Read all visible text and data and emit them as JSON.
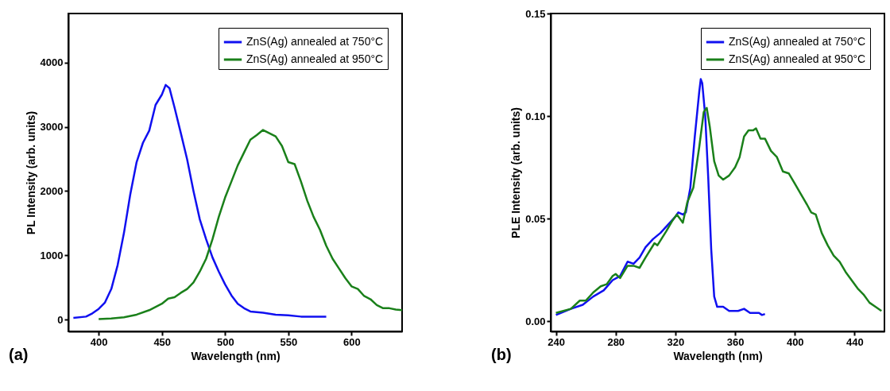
{
  "chart_data": [
    {
      "type": "line",
      "xlabel": "Wavelength (nm)",
      "ylabel": "PL Intensity (arb. units)",
      "annotations": [
        "(a)"
      ],
      "xlim": [
        376,
        640
      ],
      "xticks": [
        400,
        450,
        500,
        550,
        600
      ],
      "ylim": [
        -180,
        4760
      ],
      "yticks": [
        0,
        1000,
        2000,
        3000,
        4000
      ],
      "grid": false,
      "legend": "top right",
      "line_style": "solid",
      "series": [
        {
          "name": "ZnS(Ag) annealed at 750°C",
          "color": "#1010f0",
          "x": [
            380,
            390,
            395,
            400,
            405,
            410,
            415,
            420,
            425,
            430,
            435,
            440,
            445,
            450,
            453,
            456,
            460,
            465,
            470,
            475,
            480,
            485,
            490,
            495,
            500,
            505,
            510,
            515,
            520,
            530,
            540,
            550,
            560,
            570,
            580
          ],
          "values": [
            30,
            50,
            100,
            170,
            270,
            480,
            850,
            1350,
            1950,
            2450,
            2750,
            2940,
            3340,
            3500,
            3650,
            3600,
            3300,
            2900,
            2490,
            2000,
            1560,
            1250,
            970,
            750,
            550,
            380,
            250,
            180,
            130,
            110,
            80,
            70,
            50,
            50,
            50
          ]
        },
        {
          "name": "ZnS(Ag) annealed at 950°C",
          "color": "#1a801a",
          "x": [
            400,
            410,
            420,
            430,
            440,
            450,
            455,
            460,
            465,
            470,
            475,
            480,
            485,
            490,
            495,
            500,
            505,
            510,
            515,
            520,
            525,
            530,
            535,
            540,
            545,
            550,
            555,
            560,
            565,
            570,
            575,
            580,
            585,
            590,
            595,
            600,
            605,
            610,
            615,
            620,
            625,
            630,
            635,
            640
          ],
          "values": [
            10,
            20,
            40,
            80,
            150,
            250,
            330,
            350,
            420,
            480,
            580,
            750,
            950,
            1250,
            1600,
            1900,
            2150,
            2400,
            2600,
            2800,
            2870,
            2950,
            2900,
            2850,
            2700,
            2450,
            2420,
            2150,
            1850,
            1600,
            1400,
            1150,
            950,
            800,
            650,
            520,
            480,
            370,
            320,
            230,
            180,
            180,
            160,
            150
          ]
        }
      ]
    },
    {
      "type": "line",
      "xlabel": "Wavelength (nm)",
      "ylabel": "PLE Intensity (arb. units)",
      "annotations": [
        "(b)"
      ],
      "xlim": [
        236.5,
        460
      ],
      "xticks": [
        240,
        280,
        320,
        360,
        400,
        440
      ],
      "ylim": [
        -0.005,
        0.15
      ],
      "yticks": [
        {
          "value": 0,
          "label": "0.00"
        },
        {
          "value": 0.05,
          "label": "0.05"
        },
        {
          "value": 0.1,
          "label": "0.10"
        },
        {
          "value": 0.15,
          "label": "0.15"
        }
      ],
      "grid": false,
      "legend": "top right",
      "line_style": "solid",
      "series": [
        {
          "name": "ZnS(Ag) annealed at 750°C",
          "color": "#1010f0",
          "x": [
            240,
            250,
            258,
            265,
            272,
            278,
            283,
            288,
            292,
            296,
            300,
            305,
            310,
            315,
            320,
            322,
            325,
            327,
            330,
            333,
            336,
            337,
            338,
            340,
            342,
            344,
            346,
            348,
            352,
            356,
            362,
            366,
            370,
            376,
            378,
            380
          ],
          "values": [
            0.003,
            0.006,
            0.008,
            0.012,
            0.015,
            0.02,
            0.022,
            0.029,
            0.028,
            0.031,
            0.036,
            0.04,
            0.043,
            0.047,
            0.051,
            0.053,
            0.052,
            0.053,
            0.065,
            0.09,
            0.112,
            0.118,
            0.116,
            0.1,
            0.07,
            0.035,
            0.012,
            0.007,
            0.007,
            0.005,
            0.005,
            0.006,
            0.004,
            0.004,
            0.003,
            0.0035
          ]
        },
        {
          "name": "ZnS(Ag) annealed at 950°C",
          "color": "#1a801a",
          "x": [
            240,
            250,
            256,
            260,
            265,
            270,
            274,
            278,
            280,
            283,
            288,
            292,
            296,
            300,
            306,
            308,
            314,
            318,
            321,
            323,
            325,
            328,
            332,
            336,
            339,
            341,
            343,
            346,
            349,
            352,
            356,
            360,
            363,
            366,
            369,
            372,
            374,
            377,
            380,
            384,
            388,
            392,
            396,
            400,
            404,
            408,
            411,
            414,
            418,
            422,
            426,
            430,
            434,
            438,
            442,
            446,
            450,
            454,
            458
          ],
          "values": [
            0.004,
            0.006,
            0.01,
            0.01,
            0.014,
            0.017,
            0.018,
            0.022,
            0.023,
            0.021,
            0.027,
            0.027,
            0.026,
            0.031,
            0.038,
            0.037,
            0.044,
            0.049,
            0.052,
            0.05,
            0.048,
            0.058,
            0.065,
            0.085,
            0.102,
            0.104,
            0.095,
            0.078,
            0.071,
            0.069,
            0.071,
            0.075,
            0.08,
            0.09,
            0.093,
            0.093,
            0.094,
            0.089,
            0.089,
            0.083,
            0.08,
            0.073,
            0.072,
            0.067,
            0.062,
            0.057,
            0.053,
            0.052,
            0.043,
            0.037,
            0.032,
            0.029,
            0.024,
            0.02,
            0.016,
            0.013,
            0.009,
            0.007,
            0.005
          ]
        }
      ]
    }
  ]
}
